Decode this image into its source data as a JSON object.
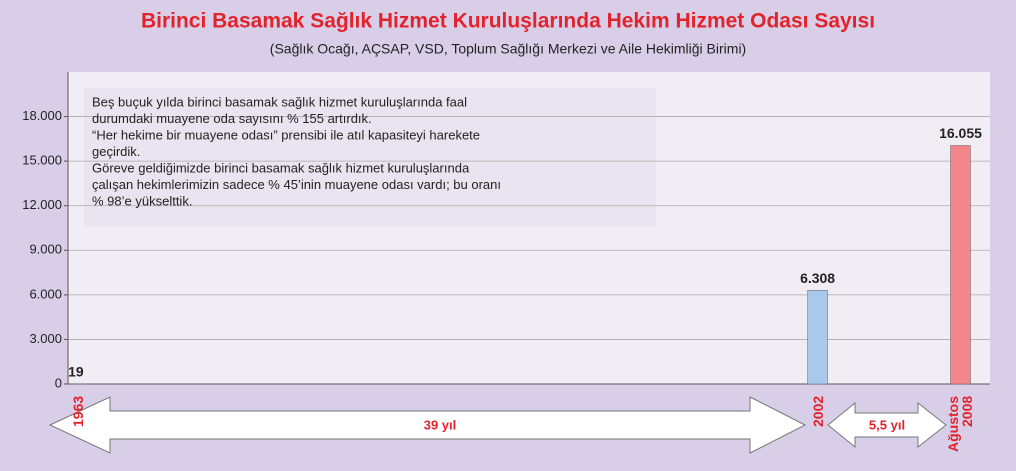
{
  "chart_data": {
    "type": "bar",
    "title": "Birinci Basamak Sağlık Hizmet Kuruluşlarında Hekim Hizmet Odası Sayısı",
    "subtitle": "(Sağlık Ocağı, AÇSAP, VSD, Toplum Sağlığı Merkezi ve Aile Hekimliği Birimi)",
    "categories": [
      "1963",
      "2002",
      "Ağustos 2008"
    ],
    "values": [
      19,
      6308,
      16055
    ],
    "value_labels": [
      "19",
      "6.308",
      "16.055"
    ],
    "colors": [
      "#8c8c6e",
      "#a9c8ea",
      "#f2868a"
    ],
    "ylim": [
      0,
      21000
    ],
    "yticks": [
      0,
      {
        "value": 3000,
        "label": "3.000"
      },
      {
        "value": 6000,
        "label": "6.000"
      },
      {
        "value": 9000,
        "label": "9.000"
      },
      {
        "value": 12000,
        "label": "12.000"
      },
      {
        "value": 15000,
        "label": "15.000"
      },
      {
        "value": 18000,
        "label": "18.000"
      }
    ],
    "grid": true,
    "note_lines": [
      "Beş buçuk yılda birinci basamak sağlık hizmet kuruluşlarında faal",
      "durumdaki muayene oda sayısını % 155 artırdık.",
      "“Her hekime bir muayene odası” prensibi ile atıl kapasiteyi harekete",
      "geçirdik.",
      "Göreve geldiğimizde birinci basamak sağlık hizmet kuruluşlarında",
      "çalışan hekimlerimizin sadece % 45’inin muayene odası vardı; bu oranı",
      "% 98’e yükselttik."
    ],
    "arrow_labels": [
      "39 yıl",
      "5,5 yıl"
    ]
  }
}
